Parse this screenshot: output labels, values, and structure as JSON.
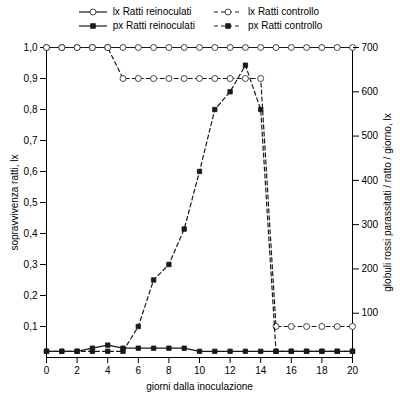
{
  "chart_data": {
    "type": "line",
    "xlabel": "giorni dalla inoculazione",
    "ylabel": "sopravvivenza ratti, lx",
    "y2label": "globuli rossi parassitati / ratto / giorno, lx",
    "xlim": [
      0,
      20
    ],
    "xticks": [
      0,
      2,
      4,
      6,
      8,
      10,
      12,
      14,
      16,
      18,
      20
    ],
    "ylim": [
      0,
      1.0
    ],
    "yticks": [
      {
        "value": 0.1,
        "label": "0,1"
      },
      {
        "value": 0.2,
        "label": "0,2"
      },
      {
        "value": 0.3,
        "label": "0,3"
      },
      {
        "value": 0.4,
        "label": "0,4"
      },
      {
        "value": 0.5,
        "label": "0,5"
      },
      {
        "value": 0.6,
        "label": "0,6"
      },
      {
        "value": 0.7,
        "label": "0,7"
      },
      {
        "value": 0.8,
        "label": "0,8"
      },
      {
        "value": 0.9,
        "label": "0,9"
      },
      {
        "value": 1.0,
        "label": "1,0"
      }
    ],
    "y2lim": [
      0,
      700
    ],
    "y2ticks": [
      100,
      200,
      300,
      400,
      500,
      600,
      700
    ],
    "grid": false,
    "legend": "top",
    "x": [
      0,
      1,
      2,
      3,
      4,
      5,
      6,
      7,
      8,
      9,
      10,
      11,
      12,
      13,
      14,
      15,
      16,
      17,
      18,
      19,
      20
    ],
    "series": [
      {
        "name": "lx Ratti reinoculati",
        "color": "#1a1a1a",
        "marker": "circle",
        "line_style": "solid",
        "values": [
          1.0,
          1.0,
          1.0,
          1.0,
          1.0,
          1.0,
          1.0,
          1.0,
          1.0,
          1.0,
          1.0,
          1.0,
          1.0,
          1.0,
          1.0,
          1.0,
          1.0,
          1.0,
          1.0,
          1.0,
          1.0
        ]
      },
      {
        "name": "lx Ratti controllo",
        "color": "#1a1a1a",
        "marker": "circle",
        "line_style": "dashed",
        "values": [
          1.0,
          1.0,
          1.0,
          1.0,
          1.0,
          0.9,
          0.9,
          0.9,
          0.9,
          0.9,
          0.9,
          0.9,
          0.9,
          0.9,
          0.9,
          0.1,
          0.1,
          0.1,
          0.1,
          0.1,
          0.1
        ]
      },
      {
        "name": "px Ratti reinoculati",
        "color": "#1a1a1a",
        "marker": "square",
        "line_style": "solid",
        "axis": "y2",
        "values": [
          14,
          14,
          14,
          21,
          28,
          21,
          21,
          21,
          21,
          21,
          14,
          14,
          14,
          14,
          14,
          14,
          14,
          14,
          14,
          14,
          14
        ]
      },
      {
        "name": "px Ratti controllo",
        "color": "#1a1a1a",
        "marker": "square",
        "line_style": "dashed",
        "axis": "y2",
        "values": [
          14,
          14,
          14,
          14,
          14,
          14,
          70,
          175,
          210,
          290,
          420,
          560,
          600,
          660,
          560,
          14,
          14,
          14,
          14,
          14,
          14
        ]
      }
    ]
  }
}
